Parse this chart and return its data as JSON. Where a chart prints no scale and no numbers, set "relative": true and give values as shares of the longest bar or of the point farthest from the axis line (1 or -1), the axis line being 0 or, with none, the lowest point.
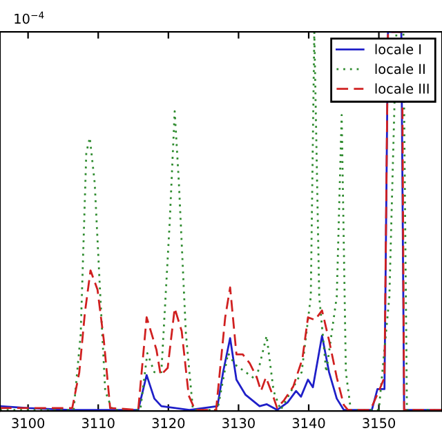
{
  "chart_data": {
    "type": "line",
    "relative": true,
    "xlim": [
      3096,
      3159
    ],
    "xticks": [
      3100,
      3110,
      3120,
      3130,
      3140,
      3150
    ],
    "annotations": [
      "10$^{−4}$"
    ],
    "legend": "top right",
    "grid": false,
    "series": [
      {
        "name": "locale I",
        "color": "#1f1fc8",
        "line_style": "solid",
        "x": [
          3096,
          3100,
          3106,
          3115.7,
          3116.9,
          3118,
          3119,
          3123,
          3127,
          3127.8,
          3128.8,
          3129.7,
          3131,
          3133,
          3134,
          3135.5,
          3137,
          3138.2,
          3138.9,
          3139.9,
          3140.6,
          3141.9,
          3142.9,
          3144,
          3145,
          3149,
          3149.8,
          3150.8,
          3151.3,
          3152.5,
          3153.2,
          3153.6,
          3159
        ],
        "values": [
          0.01,
          0.005,
          0,
          0,
          0.092,
          0.03,
          0.01,
          0,
          0.01,
          0.1,
          0.19,
          0.08,
          0.04,
          0.01,
          0.015,
          0,
          0.02,
          0.05,
          0.035,
          0.08,
          0.06,
          0.196,
          0.1,
          0.03,
          0,
          0,
          0.055,
          0.055,
          1,
          1,
          1,
          0,
          0
        ]
      },
      {
        "name": "locale II",
        "color": "#2e8b2e",
        "line_style": "dotted",
        "x": [
          3096,
          3106.5,
          3107.5,
          3108.3,
          3108.8,
          3109.5,
          3110.3,
          3111,
          3112,
          3116,
          3117,
          3118,
          3119,
          3120.2,
          3120.9,
          3121.5,
          3122.5,
          3123.5,
          3127,
          3128.5,
          3129.5,
          3131,
          3132.5,
          3134,
          3135,
          3136,
          3139,
          3140.3,
          3140.8,
          3141.5,
          3142.5,
          3144,
          3144.7,
          3145.3,
          3146,
          3150,
          3151.5,
          3152.5,
          3153.5,
          3154,
          3159
        ],
        "values": [
          0,
          0,
          0.2,
          0.68,
          0.72,
          0.6,
          0.3,
          0.05,
          0,
          0,
          0.15,
          0.1,
          0.1,
          0.5,
          0.79,
          0.6,
          0.2,
          0,
          0,
          0.15,
          0.12,
          0.1,
          0.08,
          0.196,
          0.05,
          0,
          0.1,
          0.3,
          1,
          0.3,
          0.1,
          0.3,
          0.78,
          0.1,
          0,
          0,
          0.3,
          1,
          1,
          0,
          0
        ]
      },
      {
        "name": "locale III",
        "color": "#d02020",
        "line_style": "dashed",
        "x": [
          3096,
          3106.3,
          3107.3,
          3108.1,
          3108.9,
          3109.9,
          3110.8,
          3111.7,
          3115.7,
          3116.9,
          3118.3,
          3118.9,
          3119.9,
          3120.9,
          3121.9,
          3122.9,
          3123.8,
          3126.8,
          3128.1,
          3128.8,
          3129.7,
          3130.6,
          3131.6,
          3132.6,
          3133.2,
          3133.9,
          3134.9,
          3135.5,
          3136.5,
          3137.8,
          3139.1,
          3139.9,
          3140.9,
          3141.9,
          3142.9,
          3144,
          3145,
          3145.6,
          3148.8,
          3150,
          3150.8,
          3151.3,
          3153.3,
          3153.6,
          3159
        ],
        "values": [
          0.005,
          0.005,
          0.099,
          0.257,
          0.369,
          0.318,
          0.184,
          0.005,
          0,
          0.245,
          0.159,
          0.092,
          0.111,
          0.269,
          0.208,
          0.038,
          0,
          0,
          0.245,
          0.324,
          0.147,
          0.147,
          0.123,
          0.086,
          0.05,
          0.086,
          0.038,
          0.005,
          0.026,
          0.062,
          0.135,
          0.245,
          0.238,
          0.263,
          0.184,
          0.086,
          0.013,
          0,
          0,
          0.05,
          0.086,
          1,
          1,
          0,
          0
        ]
      }
    ]
  }
}
